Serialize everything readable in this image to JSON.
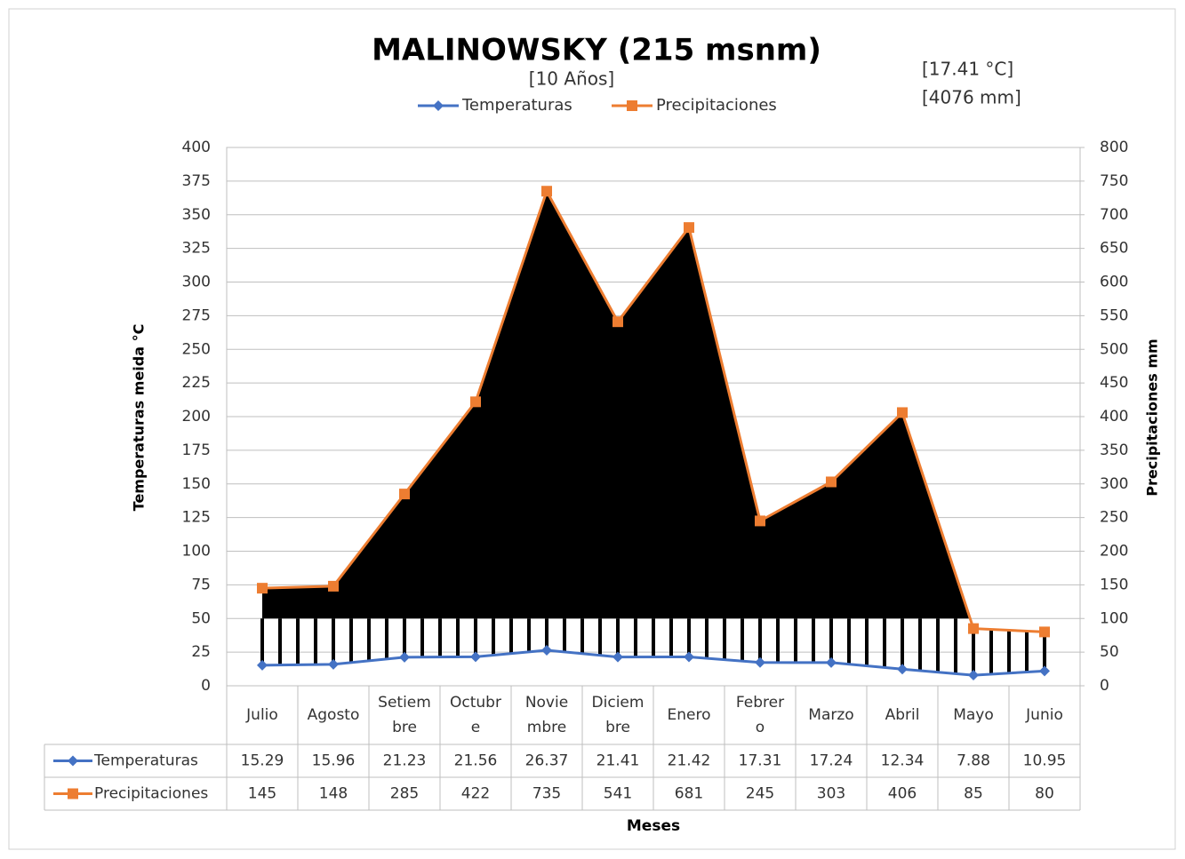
{
  "chart_data": {
    "type": "line",
    "title": "MALINOWSKY (215 msnm)",
    "subtitle": "[10 Años]",
    "annotations": [
      "[17.41 °C]",
      "[4076 mm]"
    ],
    "ylabel": "Temperaturas meida °C",
    "y2label": "Precipitaciones mm",
    "xlabel": "Meses",
    "categories": [
      "Julio",
      "Agosto",
      "Setiembre",
      "Octubre",
      "Noviembre",
      "Diciembre",
      "Enero",
      "Febrero",
      "Marzo",
      "Abril",
      "Mayo",
      "Junio"
    ],
    "series": [
      {
        "name": "Temperaturas",
        "color": "#4472c4",
        "axis": "y",
        "values": [
          15.29,
          15.96,
          21.23,
          21.56,
          26.37,
          21.41,
          21.42,
          17.31,
          17.24,
          12.34,
          7.88,
          10.95
        ]
      },
      {
        "name": "Precipitaciones",
        "color": "#ed7d31",
        "axis": "y2",
        "values": [
          145,
          148,
          285,
          422,
          735,
          541,
          681,
          245,
          303,
          406,
          85,
          80
        ]
      }
    ],
    "ylim": [
      0,
      400
    ],
    "yticks": [
      0,
      25,
      50,
      75,
      100,
      125,
      150,
      175,
      200,
      225,
      250,
      275,
      300,
      325,
      350,
      375,
      400
    ],
    "y2lim": [
      0,
      800
    ],
    "y2ticks": [
      0,
      50,
      100,
      150,
      200,
      250,
      300,
      350,
      400,
      450,
      500,
      550,
      600,
      650,
      700,
      750,
      800
    ],
    "grid": true,
    "legend": "top",
    "data_table": true
  }
}
